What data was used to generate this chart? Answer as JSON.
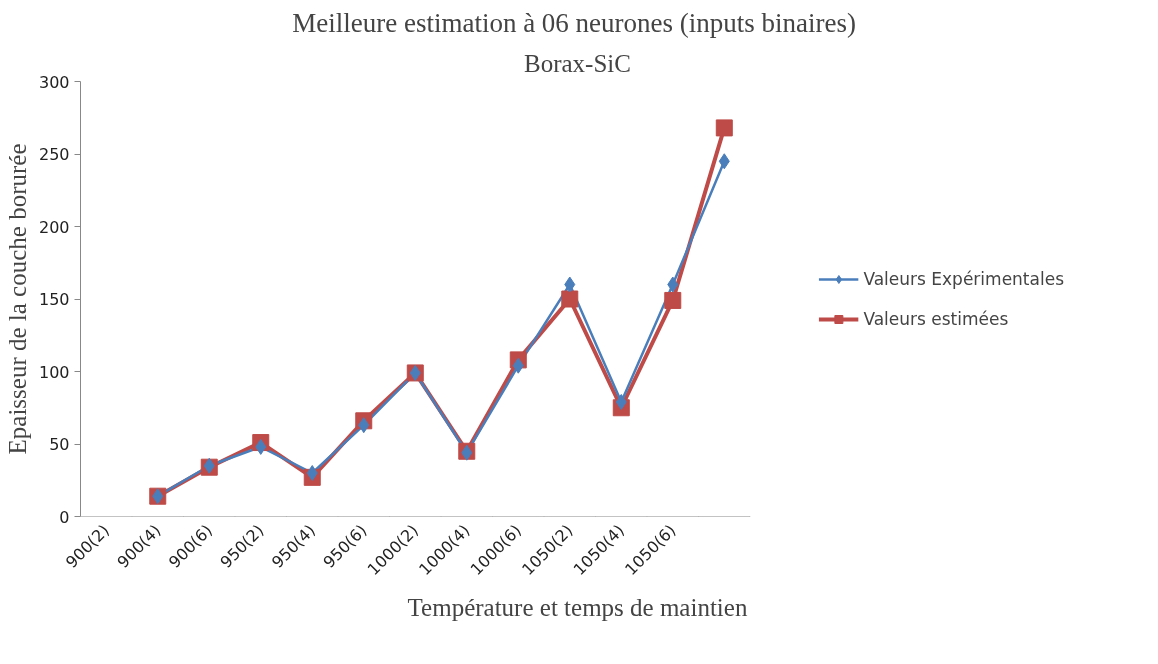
{
  "chart_data": {
    "type": "line",
    "title": "Meilleure estimation à 06  neurones (inputs binaires)",
    "subtitle": "Borax-SiC",
    "xlabel": "Température et temps de maintien",
    "ylabel": "Epaisseur de la couche borurée",
    "categories": [
      "900(2)",
      "900(4)",
      "900(6)",
      "950(2)",
      "950(4)",
      "950(6)",
      "1000(2)",
      "1000(4)",
      "1000(6)",
      "1050(2)",
      "1050(4)",
      "1050(6)",
      null
    ],
    "series": [
      {
        "name": "Valeurs Expérimentales",
        "color": "#4a7ebb",
        "marker": "diamond",
        "values": [
          null,
          14,
          35,
          48,
          30,
          63,
          99,
          44,
          104,
          160,
          79,
          160,
          245
        ]
      },
      {
        "name": "Valeurs estimées",
        "color": "#be4b48",
        "marker": "square",
        "values": [
          null,
          14,
          34,
          51,
          27,
          66,
          99,
          45,
          108,
          150,
          75,
          149,
          268
        ]
      }
    ],
    "ylim": [
      0,
      300
    ],
    "yticks": [
      0,
      50,
      100,
      150,
      200,
      250,
      300
    ],
    "grid": false,
    "legend": "right",
    "line_style": "solid"
  }
}
